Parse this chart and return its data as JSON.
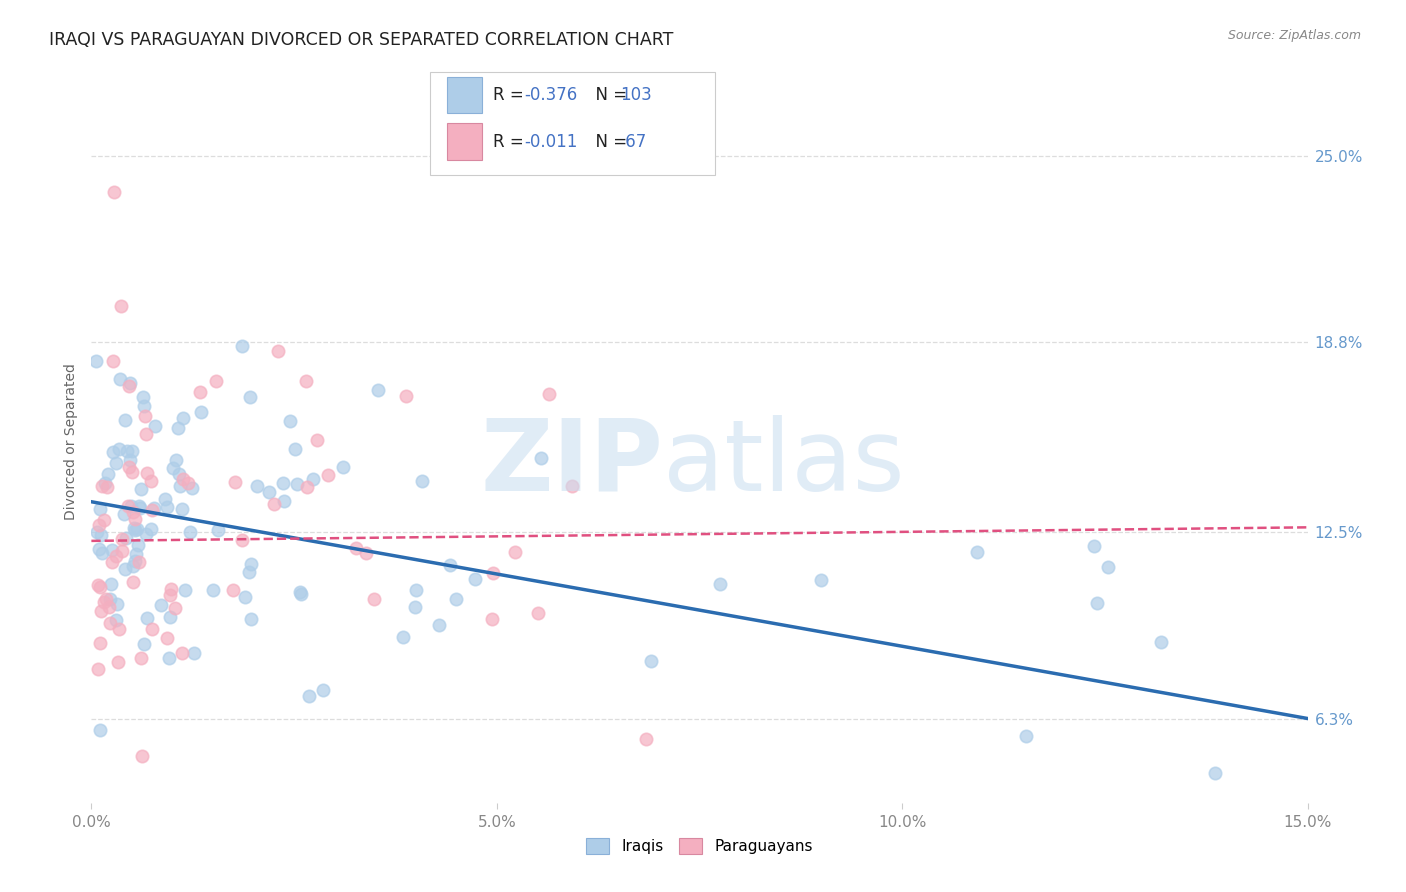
{
  "title": "IRAQI VS PARAGUAYAN DIVORCED OR SEPARATED CORRELATION CHART",
  "source": "Source: ZipAtlas.com",
  "ylabel": "Divorced or Separated",
  "ytick_values": [
    6.3,
    12.5,
    18.8,
    25.0
  ],
  "ytick_labels": [
    "6.3%",
    "12.5%",
    "18.8%",
    "25.0%"
  ],
  "xtick_values": [
    0.0,
    5.0,
    10.0,
    15.0
  ],
  "xtick_labels": [
    "0.0%",
    "5.0%",
    "10.0%",
    "15.0%"
  ],
  "xlim": [
    0.0,
    15.0
  ],
  "ylim": [
    3.5,
    27.5
  ],
  "legend_line1": "R = -0.376   N = 103",
  "legend_line2": "R = -0.011   N =  67",
  "iraqis_color": "#aecde8",
  "paraguayans_color": "#f4afc0",
  "iraqis_line_color": "#2b6cb0",
  "paraguayans_line_color": "#e05080",
  "text_blue_color": "#4472c4",
  "watermark_zip_color": "#dde8f2",
  "watermark_atlas_color": "#dde8f2",
  "background_color": "#ffffff",
  "grid_color": "#dddddd",
  "right_tick_color": "#6699cc",
  "title_color": "#222222",
  "source_color": "#888888",
  "ylabel_color": "#666666"
}
